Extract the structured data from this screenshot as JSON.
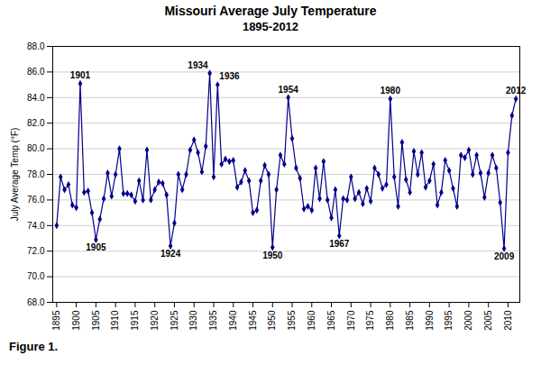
{
  "chart_data": {
    "type": "line",
    "title": "Missouri Average July Temperature",
    "subtitle": "1895-2012",
    "caption": "Figure 1.",
    "ylabel": "July Average Temp (°F)",
    "color": "#00008B",
    "marker": "diamond",
    "grid": "y",
    "xlim": [
      1894,
      2013
    ],
    "xticks": [
      1895,
      1900,
      1905,
      1910,
      1915,
      1920,
      1925,
      1930,
      1935,
      1940,
      1945,
      1950,
      1955,
      1960,
      1965,
      1970,
      1975,
      1980,
      1985,
      1990,
      1995,
      2000,
      2005,
      2010
    ],
    "ylim": [
      68.0,
      88.0
    ],
    "yticks": [
      {
        "value": 68.0,
        "label": "68.0"
      },
      {
        "value": 70.0,
        "label": "70.0"
      },
      {
        "value": 72.0,
        "label": "72.0"
      },
      {
        "value": 74.0,
        "label": "74.0"
      },
      {
        "value": 76.0,
        "label": "76.0"
      },
      {
        "value": 78.0,
        "label": "78.0"
      },
      {
        "value": 80.0,
        "label": "80.0"
      },
      {
        "value": 82.0,
        "label": "82.0"
      },
      {
        "value": 84.0,
        "label": "84.0"
      },
      {
        "value": 86.0,
        "label": "86.0"
      },
      {
        "value": 88.0,
        "label": "88.0"
      }
    ],
    "annotations": [
      {
        "text": "1901",
        "x": 1901,
        "y": 85.1
      },
      {
        "text": "1905",
        "x": 1905,
        "y": 72.9
      },
      {
        "text": "1924",
        "x": 1924,
        "y": 72.4
      },
      {
        "text": "1934",
        "x": 1934,
        "y": 85.9
      },
      {
        "text": "1936",
        "x": 1936,
        "y": 85.0
      },
      {
        "text": "1950",
        "x": 1950,
        "y": 72.3
      },
      {
        "text": "1954",
        "x": 1954,
        "y": 84.0
      },
      {
        "text": "1967",
        "x": 1967,
        "y": 73.2
      },
      {
        "text": "1980",
        "x": 1980,
        "y": 83.9
      },
      {
        "text": "2009",
        "x": 2009,
        "y": 72.2
      },
      {
        "text": "2012",
        "x": 2012,
        "y": 83.9
      }
    ],
    "x": [
      1895,
      1896,
      1897,
      1898,
      1899,
      1900,
      1901,
      1902,
      1903,
      1904,
      1905,
      1906,
      1907,
      1908,
      1909,
      1910,
      1911,
      1912,
      1913,
      1914,
      1915,
      1916,
      1917,
      1918,
      1919,
      1920,
      1921,
      1922,
      1923,
      1924,
      1925,
      1926,
      1927,
      1928,
      1929,
      1930,
      1931,
      1932,
      1933,
      1934,
      1935,
      1936,
      1937,
      1938,
      1939,
      1940,
      1941,
      1942,
      1943,
      1944,
      1945,
      1946,
      1947,
      1948,
      1949,
      1950,
      1951,
      1952,
      1953,
      1954,
      1955,
      1956,
      1957,
      1958,
      1959,
      1960,
      1961,
      1962,
      1963,
      1964,
      1965,
      1966,
      1967,
      1968,
      1969,
      1970,
      1971,
      1972,
      1973,
      1974,
      1975,
      1976,
      1977,
      1978,
      1979,
      1980,
      1981,
      1982,
      1983,
      1984,
      1985,
      1986,
      1987,
      1988,
      1989,
      1990,
      1991,
      1992,
      1993,
      1994,
      1995,
      1996,
      1997,
      1998,
      1999,
      2000,
      2001,
      2002,
      2003,
      2004,
      2005,
      2006,
      2007,
      2008,
      2009,
      2010,
      2011,
      2012
    ],
    "values": [
      74.0,
      77.8,
      76.8,
      77.2,
      75.6,
      75.4,
      85.1,
      76.6,
      76.7,
      75.0,
      72.9,
      74.5,
      76.1,
      78.1,
      76.3,
      78.0,
      80.0,
      76.5,
      76.5,
      76.4,
      75.9,
      77.5,
      76.0,
      79.9,
      76.0,
      76.8,
      77.4,
      77.3,
      76.4,
      72.4,
      74.2,
      78.0,
      76.8,
      78.0,
      79.9,
      80.7,
      79.7,
      78.2,
      80.2,
      85.9,
      77.8,
      85.0,
      78.8,
      79.2,
      79.0,
      79.1,
      77.0,
      77.4,
      78.3,
      77.5,
      75.0,
      75.2,
      77.5,
      78.7,
      78.0,
      72.3,
      76.8,
      79.5,
      78.8,
      84.0,
      80.8,
      78.5,
      77.7,
      75.3,
      75.5,
      75.2,
      78.5,
      76.1,
      79.0,
      76.0,
      74.6,
      76.8,
      73.2,
      76.1,
      76.0,
      77.8,
      76.1,
      76.6,
      75.7,
      76.9,
      75.9,
      78.5,
      78.0,
      76.9,
      77.2,
      83.9,
      77.8,
      75.5,
      80.5,
      77.6,
      76.6,
      79.8,
      78.0,
      79.7,
      77.0,
      77.5,
      78.8,
      75.6,
      76.6,
      79.1,
      78.3,
      76.9,
      75.5,
      79.5,
      79.3,
      79.9,
      78.0,
      79.5,
      78.1,
      76.2,
      78.1,
      79.5,
      78.5,
      75.8,
      72.2,
      79.7,
      82.6,
      83.9
    ]
  }
}
